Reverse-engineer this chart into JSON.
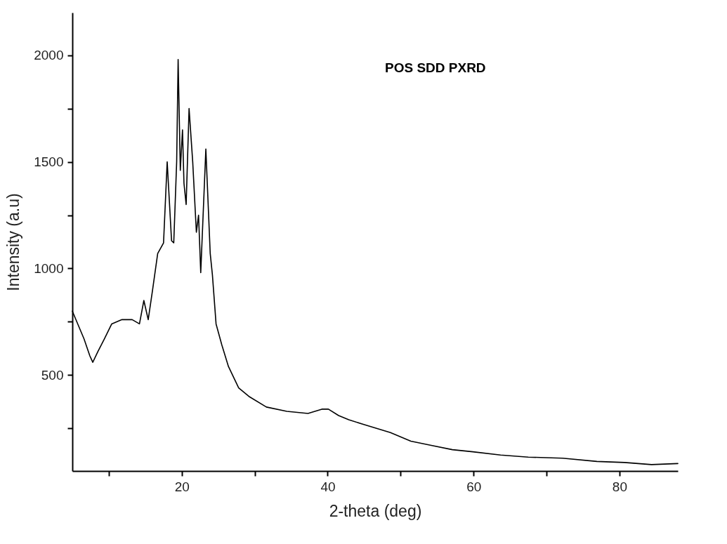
{
  "chart_data": {
    "type": "line",
    "xlabel": "2-theta (deg)",
    "ylabel": "Intensity (a.u)",
    "annotations": [
      "POS SDD PXRD"
    ],
    "xlim": [
      5,
      88
    ],
    "ylim": [
      50,
      2200
    ],
    "xticks": [
      {
        "value": 10,
        "label": null
      },
      20,
      {
        "value": 30,
        "label": null
      },
      40,
      {
        "value": 50,
        "label": null
      },
      60,
      {
        "value": 70,
        "label": null
      },
      80
    ],
    "yticks": [
      {
        "value": 250,
        "label": null
      },
      500,
      {
        "value": 750,
        "label": null
      },
      1000,
      {
        "value": 1250,
        "label": null
      },
      1500,
      {
        "value": 1750,
        "label": null
      },
      2000
    ],
    "grid": false,
    "marker": "none",
    "line_style": "solid",
    "series": [
      {
        "color": "#000000",
        "x": [
          5,
          6.6,
          7.4,
          7.8,
          8.5,
          9.4,
          10.4,
          11.8,
          13.2,
          14.2,
          14.8,
          15.4,
          16.0,
          16.7,
          17.5,
          18.0,
          18.6,
          18.9,
          19.3,
          19.5,
          19.8,
          20.1,
          20.3,
          20.6,
          21.0,
          21.5,
          22.0,
          22.3,
          22.6,
          23.3,
          23.9,
          24.2,
          24.7,
          25.5,
          26.4,
          27.8,
          29.2,
          31.6,
          34.4,
          37.3,
          39.2,
          40.1,
          41.5,
          42.9,
          44.8,
          46.7,
          48.6,
          51.4,
          54.2,
          57.1,
          59.9,
          63.7,
          67.5,
          72.2,
          76.9,
          80.7,
          84.4,
          88
        ],
        "values": [
          800,
          670,
          590,
          560,
          610,
          670,
          740,
          760,
          760,
          740,
          850,
          760,
          900,
          1070,
          1120,
          1500,
          1130,
          1120,
          1500,
          1980,
          1460,
          1650,
          1400,
          1300,
          1750,
          1500,
          1170,
          1250,
          980,
          1560,
          1070,
          970,
          740,
          640,
          540,
          440,
          400,
          350,
          330,
          320,
          340,
          340,
          310,
          290,
          270,
          250,
          230,
          190,
          170,
          150,
          140,
          125,
          115,
          110,
          95,
          90,
          80,
          85
        ]
      }
    ]
  }
}
